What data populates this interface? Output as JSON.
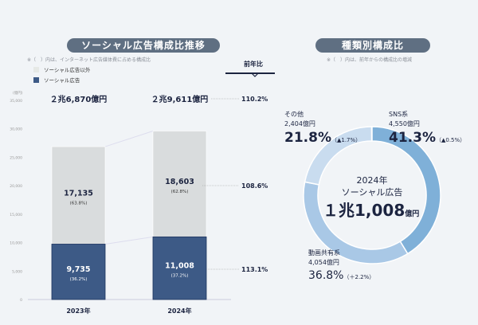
{
  "left": {
    "title": "ソーシャル広告構成比推移",
    "note": "※（　）内は、インターネット広告媒体費に占める構成比",
    "legend": [
      {
        "label": "ソーシャル広告以外",
        "color": "#d9dcdd"
      },
      {
        "label": "ソーシャル広告",
        "color": "#3d5a86"
      }
    ],
    "yoy_header": "前年比"
  },
  "right": {
    "title": "種類別構成比",
    "note": "※（　）内は、前年からの構成比の増減",
    "center_year": "2024年",
    "center_label": "ソーシャル広告",
    "center_value": "１兆1,008",
    "center_unit": "億円"
  },
  "chart_data": [
    {
      "type": "bar",
      "stacked": true,
      "ylabel": "(億円)",
      "ylim": [
        0,
        35000
      ],
      "yticks": [
        "0",
        "5,000",
        "10,000",
        "15,000",
        "20,000",
        "25,000",
        "30,000",
        "35,000"
      ],
      "categories": [
        "2023年",
        "2024年"
      ],
      "totals": [
        "２兆6,870億円",
        "２兆9,611億円"
      ],
      "total_yoy": "110.2%",
      "series": [
        {
          "name": "ソーシャル広告",
          "values": [
            9735,
            11008
          ],
          "labels": [
            "9,735",
            "11,008"
          ],
          "shares": [
            "(36.2%)",
            "(37.2%)"
          ],
          "yoy": "113.1%",
          "color": "#3d5a86"
        },
        {
          "name": "ソーシャル広告以外",
          "values": [
            17135,
            18603
          ],
          "labels": [
            "17,135",
            "18,603"
          ],
          "shares": [
            "(63.8%)",
            "(62.8%)"
          ],
          "yoy": "108.6%",
          "color": "#d9dcdd"
        }
      ]
    },
    {
      "type": "pie",
      "donut": true,
      "slices": [
        {
          "name": "SNS系",
          "amount": "4,550億円",
          "percent": 41.3,
          "percent_label": "41.3%",
          "change": "（▲0.5%）",
          "color": "#7fb0d8"
        },
        {
          "name": "動画共有系",
          "amount": "4,054億円",
          "percent": 36.8,
          "percent_label": "36.8%",
          "change": "（＋2.2%）",
          "color": "#a9c8e6"
        },
        {
          "name": "その他",
          "amount": "2,404億円",
          "percent": 21.8,
          "percent_label": "21.8%",
          "change": "（▲1.7%）",
          "color": "#c9dcef"
        }
      ]
    }
  ]
}
